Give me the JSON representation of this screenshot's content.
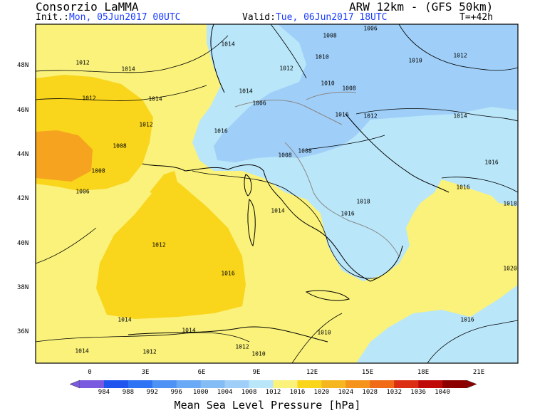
{
  "header": {
    "org": "Consorzio LaMMA",
    "model": "ARW 12km - (GFS 50km)",
    "init_label": "Init.:",
    "init_value": "Mon, 05Jun2017 00UTC",
    "valid_label": "Valid:",
    "valid_value": "Tue, 06Jun2017 18UTC",
    "lead": "T=+42h"
  },
  "map": {
    "lat_labels": [
      "48N",
      "46N",
      "44N",
      "42N",
      "40N",
      "38N",
      "36N"
    ],
    "lon_labels": [
      "0",
      "3E",
      "6E",
      "9E",
      "12E",
      "15E",
      "18E",
      "21E"
    ],
    "isobar_labels": [
      "1006",
      "1008",
      "1008",
      "1010",
      "1010",
      "1012",
      "1014",
      "1014",
      "1016",
      "1016",
      "1016",
      "1018",
      "1016",
      "1014",
      "1014",
      "1014",
      "1012",
      "1010",
      "1010",
      "1008",
      "1008",
      "1006",
      "1010",
      "1012",
      "1012",
      "1014",
      "1016",
      "1016",
      "1018",
      "1020",
      "1016",
      "1014",
      "1012",
      "1012",
      "1012",
      "1012",
      "1014",
      "1014",
      "1012",
      "1008",
      "1008",
      "1006"
    ]
  },
  "colorbar": {
    "values": [
      "984",
      "988",
      "992",
      "996",
      "1000",
      "1004",
      "1008",
      "1012",
      "1016",
      "1020",
      "1024",
      "1028",
      "1032",
      "1036",
      "1040"
    ],
    "colors": [
      "#7a5be0",
      "#1f55ee",
      "#2e73f3",
      "#4f92f5",
      "#6aa9f6",
      "#84bdf5",
      "#9fcff8",
      "#b9e6f9",
      "#faf27a",
      "#f9d51c",
      "#f6b61f",
      "#f5931d",
      "#f06a18",
      "#dc2e14",
      "#c00a0a",
      "#8c0000"
    ],
    "title": "Mean Sea Level Pressure [hPa]"
  }
}
